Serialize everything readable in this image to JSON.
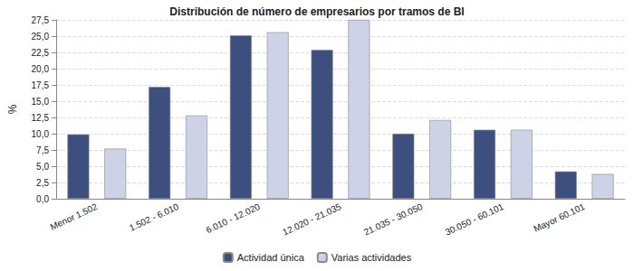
{
  "chart_data": {
    "type": "bar",
    "title": "Distribución de número de empresarios por tramos de BI",
    "y_label": "%",
    "categories": [
      "Menor 1.502",
      "1.502 - 6.010",
      "6.010 - 12.020",
      "12.020 - 21.035",
      "21.035 - 30.050",
      "30.050 - 60.101",
      "Mayor 60.101"
    ],
    "series": [
      {
        "name": "Actividad única",
        "color": "#3d4f7f",
        "values": [
          9.9,
          17.2,
          25.1,
          22.9,
          10.0,
          10.6,
          4.2
        ]
      },
      {
        "name": "Varias actividades",
        "color": "#cdd2e6",
        "values": [
          7.7,
          12.8,
          25.6,
          27.5,
          12.1,
          10.6,
          3.8
        ]
      }
    ],
    "ylim": [
      0,
      27.5
    ],
    "yticks": [
      {
        "value": 0,
        "label": "0,0"
      },
      {
        "value": 2.5,
        "label": "2,5"
      },
      {
        "value": 5,
        "label": "5,0"
      },
      {
        "value": 7.5,
        "label": "7,5"
      },
      {
        "value": 10,
        "label": "10,0"
      },
      {
        "value": 12.5,
        "label": "12,5"
      },
      {
        "value": 15,
        "label": "15,0"
      },
      {
        "value": 17.5,
        "label": "17,5"
      },
      {
        "value": 20,
        "label": "20,0"
      },
      {
        "value": 22.5,
        "label": "22,5"
      },
      {
        "value": 25,
        "label": "25,0"
      },
      {
        "value": 27.5,
        "label": "27,5"
      }
    ],
    "grid": true,
    "legend": "bottom"
  }
}
